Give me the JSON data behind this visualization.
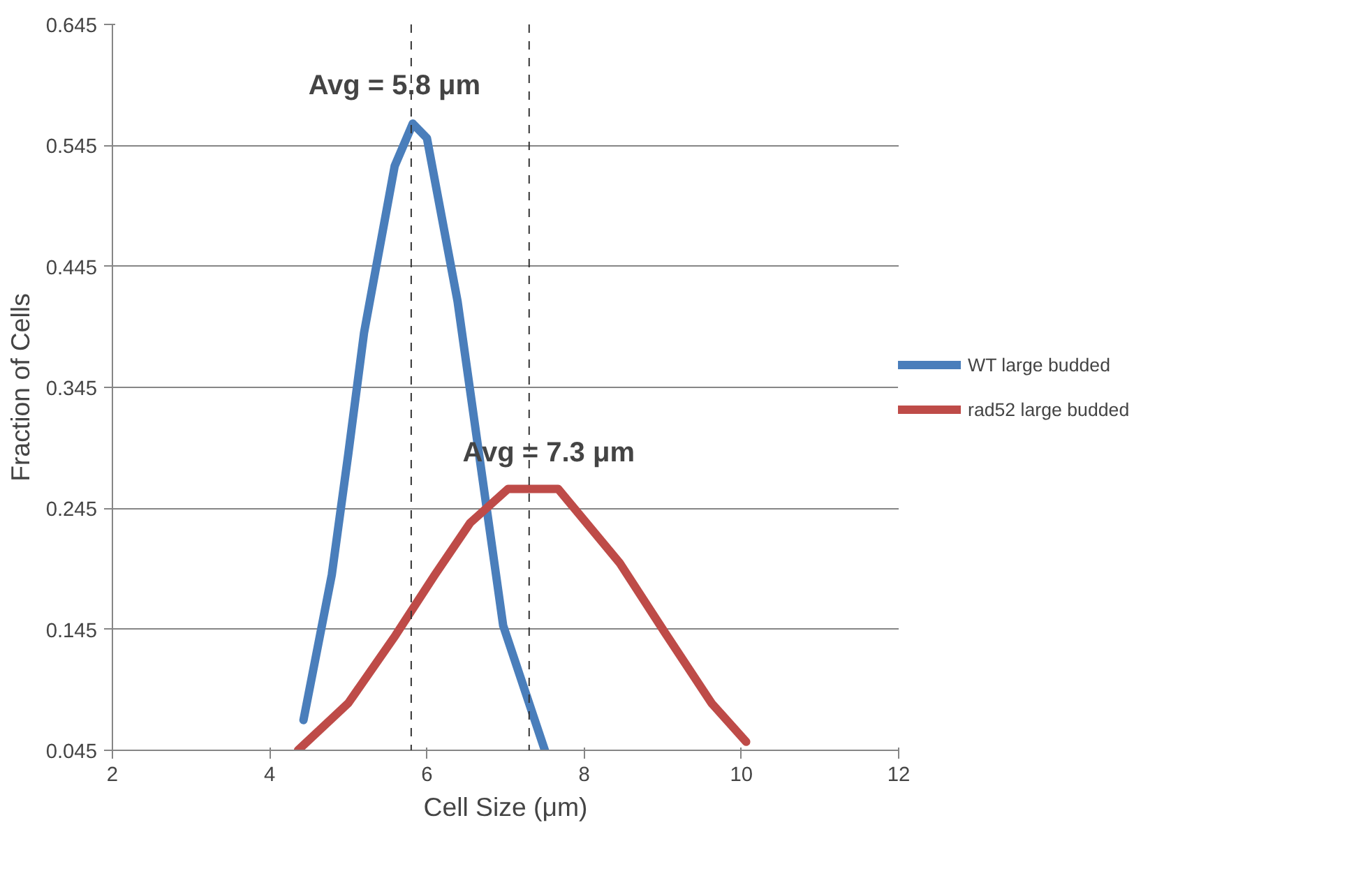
{
  "chart_data": {
    "type": "line",
    "xlabel": "Cell Size (μm)",
    "ylabel": "Fraction of Cells",
    "xlim": [
      2,
      12
    ],
    "xticks": [
      2,
      4,
      6,
      8,
      10,
      12
    ],
    "ylim": [
      0.045,
      0.645
    ],
    "yticks": [
      0.045,
      0.145,
      0.245,
      0.345,
      0.445,
      0.545,
      0.645
    ],
    "grid": "y",
    "legend": "right",
    "line_style": "solid",
    "marker": "none",
    "series": [
      {
        "name": "WT large budded",
        "color": "#4a7ebb",
        "x": [
          4.43,
          4.79,
          5.0,
          5.2,
          5.59,
          5.82,
          6.0,
          6.39,
          6.97,
          7.5
        ],
        "values": [
          0.07,
          0.19,
          0.29,
          0.39,
          0.528,
          0.563,
          0.551,
          0.416,
          0.148,
          0.045
        ]
      },
      {
        "name": "rad52 large budded",
        "color": "#be4b48",
        "x": [
          4.36,
          5.0,
          5.6,
          6.1,
          6.55,
          7.03,
          7.67,
          8.45,
          9.03,
          9.62,
          10.06
        ],
        "values": [
          0.045,
          0.084,
          0.14,
          0.19,
          0.233,
          0.261,
          0.261,
          0.2,
          0.142,
          0.084,
          0.052
        ]
      }
    ],
    "ref_lines": [
      {
        "axis": "x",
        "value": 5.8,
        "label": "Avg = 5.8 μm",
        "line_style": "dashed",
        "color": "#333333"
      },
      {
        "axis": "x",
        "value": 7.3,
        "label": "Avg = 7.3 μm",
        "line_style": "dashed",
        "color": "#333333"
      }
    ]
  }
}
